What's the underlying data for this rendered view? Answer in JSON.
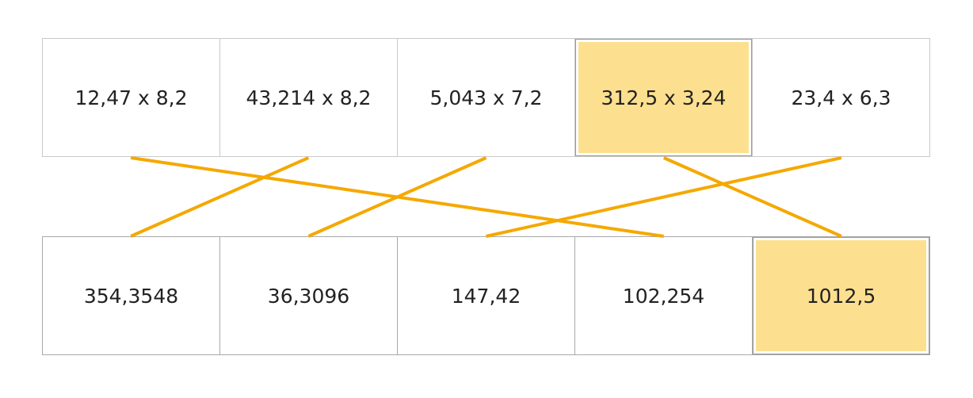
{
  "colors": {
    "highlight": "#fde08f",
    "connector": "#f5a800"
  },
  "problems": [
    {
      "label": "12,47 x 8,2",
      "selected": false
    },
    {
      "label": "43,214 x 8,2",
      "selected": false
    },
    {
      "label": "5,043 x 7,2",
      "selected": false
    },
    {
      "label": "312,5 x 3,24",
      "selected": true
    },
    {
      "label": "23,4 x 6,3",
      "selected": false
    }
  ],
  "answers": [
    {
      "label": "354,3548",
      "selected": false
    },
    {
      "label": "36,3096",
      "selected": false
    },
    {
      "label": "147,42",
      "selected": false
    },
    {
      "label": "102,254",
      "selected": false
    },
    {
      "label": "1012,5",
      "selected": true
    }
  ],
  "matches": [
    {
      "problem": 0,
      "answer": 3
    },
    {
      "problem": 1,
      "answer": 0
    },
    {
      "problem": 2,
      "answer": 1
    },
    {
      "problem": 3,
      "answer": 4
    },
    {
      "problem": 4,
      "answer": 2
    }
  ]
}
